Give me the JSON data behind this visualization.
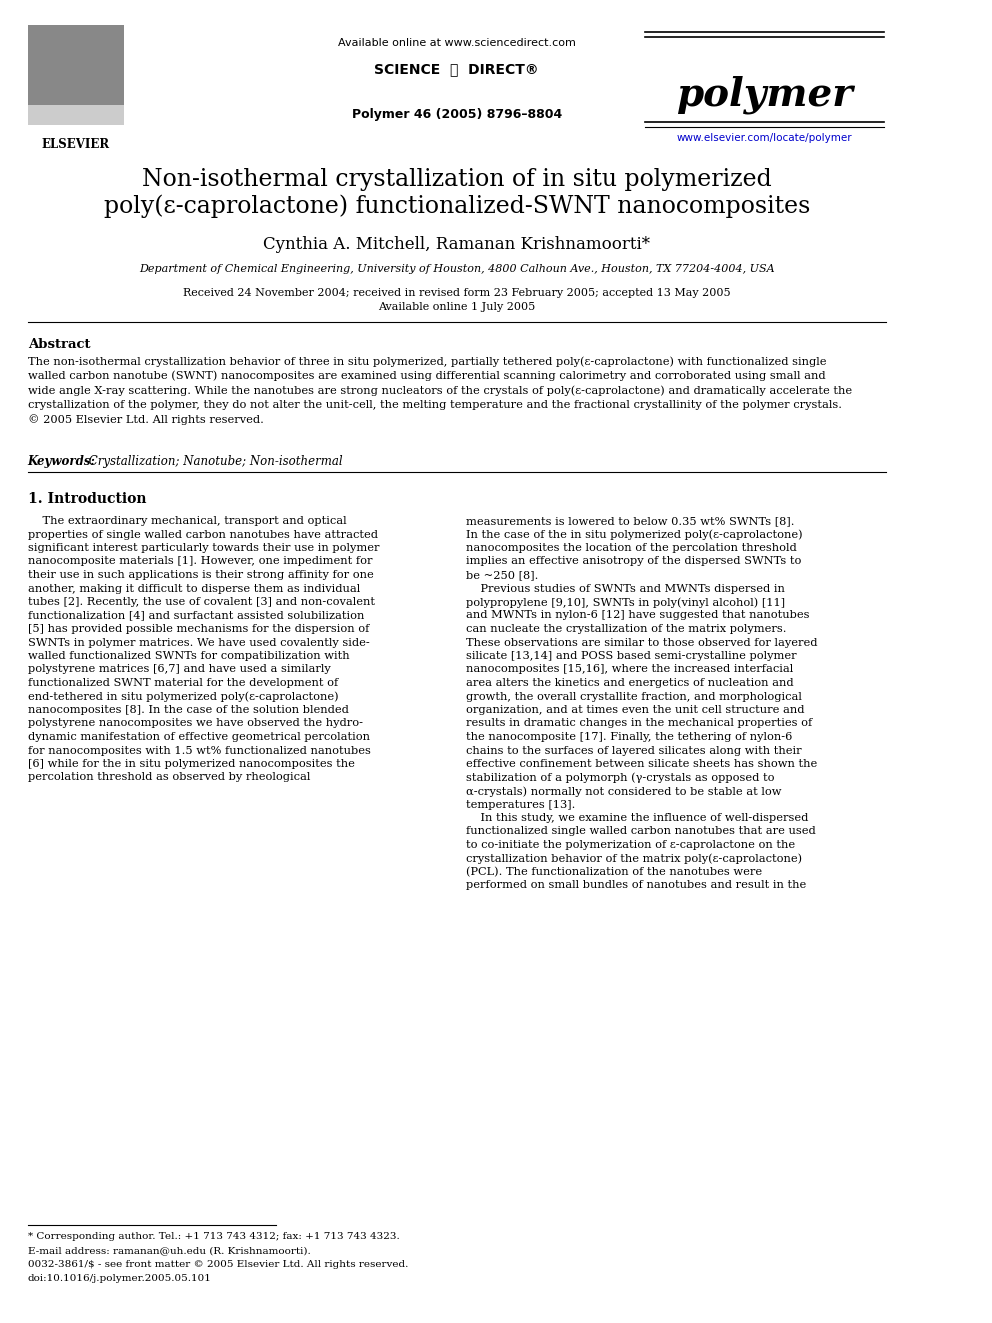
{
  "bg_color": "#ffffff",
  "header": {
    "available_online": "Available online at www.sciencedirect.com",
    "journal_cite": "Polymer 46 (2005) 8796–8804",
    "journal_name": "polymer",
    "website": "www.elsevier.com/locate/polymer",
    "elsevier_label": "ELSEVIER"
  },
  "title_line1": "Non-isothermal crystallization of in situ polymerized",
  "title_line2": "poly(ε-caprolactone) functionalized-SWNT nanocomposites",
  "authors": "Cynthia A. Mitchell, Ramanan Krishnamoorti*",
  "affiliation": "Department of Chemical Engineering, University of Houston, 4800 Calhoun Ave., Houston, TX 77204-4004, USA",
  "dates": "Received 24 November 2004; received in revised form 23 February 2005; accepted 13 May 2005",
  "available_online_date": "Available online 1 July 2005",
  "abstract_title": "Abstract",
  "abstract_text": "The non-isothermal crystallization behavior of three in situ polymerized, partially tethered poly(ε-caprolactone) with functionalized single walled carbon nanotube (SWNT) nanocomposites are examined using differential scanning calorimetry and corroborated using small and wide angle X-ray scattering. While the nanotubes are strong nucleators of the crystals of poly(ε-caprolactone) and dramatically accelerate the crystallization of the polymer, they do not alter the unit-cell, the melting temperature and the fractional crystallinity of the polymer crystals.\n© 2005 Elsevier Ltd. All rights reserved.",
  "keywords_label": "Keywords:",
  "keywords_text": " Crystallization; Nanotube; Non-isothermal",
  "section1_title": "1. Introduction",
  "col1_text": "The extraordinary mechanical, transport and optical properties of single walled carbon nanotubes have attracted significant interest particularly towards their use in polymer nanocomposite materials [1]. However, one impediment for their use in such applications is their strong affinity for one another, making it difficult to disperse them as individual tubes [2]. Recently, the use of covalent [3] and non-covalent functionalization [4] and surfactant assisted solubilization [5] has provided possible mechanisms for the dispersion of SWNTs in polymer matrices. We have used covalently side-walled functionalized SWNTs for compatibilization with polystyrene matrices [6,7] and have used a similarly functionalized SWNT material for the development of end-tethered in situ polymerized poly(ε-caprolactone) nanocomposites [8]. In the case of the solution blended polystyrene nanocomposites we have observed the hydrodynamic manifestation of effective geometrical percolation for nanocomposites with 1.5 wt% functionalized nanotubes [6] while for the in situ polymerized nanocomposites the percolation threshold as observed by rheological",
  "col2_text": "measurements is lowered to below 0.35 wt% SWNTs [8]. In the case of the in situ polymerized poly(ε-caprolactone) nanocomposites the location of the percolation threshold implies an effective anisotropy of the dispersed SWNTs to be ~250 [8].\n    Previous studies of SWNTs and MWNTs dispersed in polypropylene [9,10], SWNTs in poly(vinyl alcohol) [11] and MWNTs in nylon-6 [12] have suggested that nanotubes can nucleate the crystallization of the matrix polymers. These observations are similar to those observed for layered silicate [13,14] and POSS based semi-crystalline polymer nanocomposites [15,16], where the increased interfacial area alters the kinetics and energetics of nucleation and growth, the overall crystallite fraction, and morphological organization, and at times even the unit cell structure and results in dramatic changes in the mechanical properties of the nanocomposite [17]. Finally, the tethering of nylon-6 chains to the surfaces of layered silicates along with their effective confinement between silicate sheets has shown the stabilization of a polymorph (γ-crystals as opposed to α-crystals) normally not considered to be stable at low temperatures [13].\n    In this study, we examine the influence of well-dispersed functionalized single walled carbon nanotubes that are used to co-initiate the polymerization of ε-caprolactone on the crystallization behavior of the matrix poly(ε-caprolactone) (PCL). The functionalization of the nanotubes were performed on small bundles of nanotubes and result in the",
  "footnote1": "* Corresponding author. Tel.: +1 713 743 4312; fax: +1 713 743 4323.",
  "footnote2": "E-mail address: ramanan@uh.edu (R. Krishnamoorti).",
  "footnote3": "0032-3861/$ - see front matter © 2005 Elsevier Ltd. All rights reserved.",
  "footnote4": "doi:10.1016/j.polymer.2005.05.101"
}
